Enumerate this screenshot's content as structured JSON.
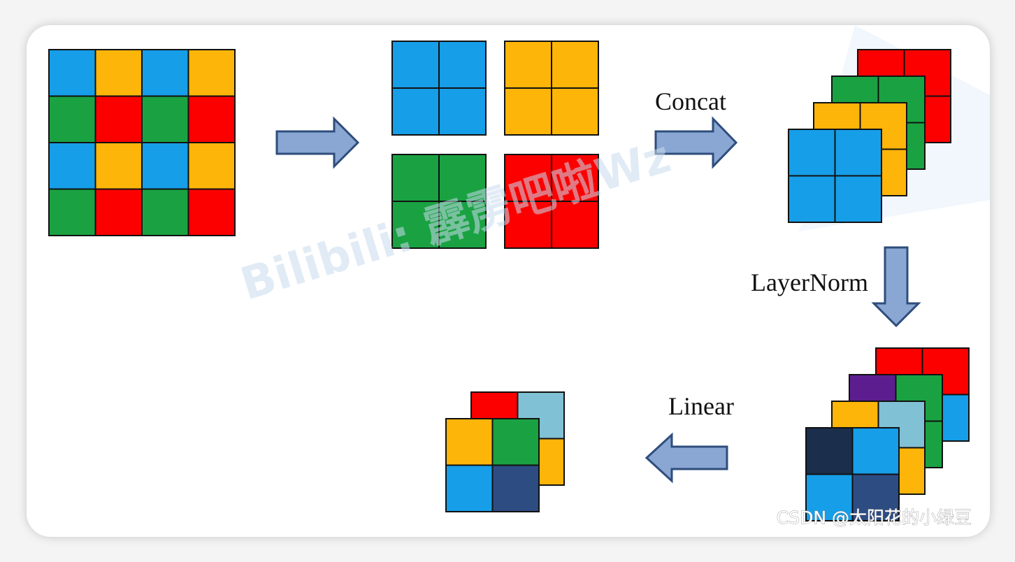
{
  "colors": {
    "blue": "#169ee8",
    "orange": "#fdb509",
    "green": "#1aa242",
    "red": "#fc0000",
    "purple": "#5c1e8f",
    "light_blue": "#81c1d5",
    "navy": "#1b2e4b",
    "dark_blue": "#2d4c82",
    "arrow_fill": "#8aa7d3",
    "arrow_stroke": "#2e4d7c",
    "grid_line": "#111111"
  },
  "input_grid": [
    [
      "blue",
      "orange",
      "blue",
      "orange"
    ],
    [
      "green",
      "red",
      "green",
      "red"
    ],
    [
      "blue",
      "orange",
      "blue",
      "orange"
    ],
    [
      "green",
      "red",
      "green",
      "red"
    ]
  ],
  "patches": [
    "blue",
    "orange",
    "green",
    "red"
  ],
  "concat_stack": [
    "red",
    "green",
    "orange",
    "blue"
  ],
  "norm_stack": [
    [
      "red",
      "red",
      "red",
      "blue"
    ],
    [
      "purple",
      "green",
      "green",
      "green"
    ],
    [
      "orange",
      "light_blue",
      "orange",
      "orange"
    ],
    [
      "navy",
      "blue",
      "blue",
      "dark_blue"
    ]
  ],
  "output_stack": [
    [
      "red",
      "light_blue",
      "red",
      "orange"
    ],
    [
      "orange",
      "green",
      "blue",
      "dark_blue"
    ]
  ],
  "labels": {
    "concat": "Concat",
    "layernorm": "LayerNorm",
    "linear": "Linear"
  },
  "watermark": "Bilibili: 霹雳吧啦Wz",
  "credit": "CSDN @太阳花的小绿豆"
}
